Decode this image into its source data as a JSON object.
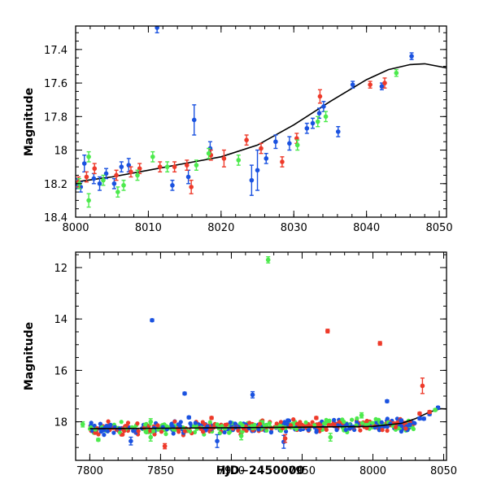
{
  "colors": {
    "blue": "#1a52e0",
    "red": "#ee3a2a",
    "green": "#4cea4c",
    "curve": "#000000"
  },
  "chart_data": [
    {
      "type": "scatter",
      "title": "",
      "xlabel": "",
      "ylabel": "Magnitude",
      "xlim": [
        8000,
        8051
      ],
      "ylim": [
        18.4,
        17.26
      ],
      "y_inverted": true,
      "xticks": [
        8000,
        8010,
        8020,
        8030,
        8040,
        8050
      ],
      "yticks": [
        17.4,
        17.6,
        17.8,
        18,
        18.2,
        18.4
      ],
      "ytick_labels": [
        "17.4",
        "17.6",
        "17.8",
        "18",
        "18.2",
        "18.4"
      ],
      "grid": false,
      "series": [
        {
          "color": "blue",
          "points": [
            {
              "x": 8000.2,
              "y": 18.2,
              "e": 0.03
            },
            {
              "x": 8000.7,
              "y": 18.22,
              "e": 0.03
            },
            {
              "x": 8001.2,
              "y": 18.08,
              "e": 0.05
            },
            {
              "x": 8002.5,
              "y": 18.17,
              "e": 0.03
            },
            {
              "x": 8003.3,
              "y": 18.2,
              "e": 0.04
            },
            {
              "x": 8004.2,
              "y": 18.14,
              "e": 0.03
            },
            {
              "x": 8005.3,
              "y": 18.2,
              "e": 0.03
            },
            {
              "x": 8006.3,
              "y": 18.1,
              "e": 0.03
            },
            {
              "x": 8007.3,
              "y": 18.09,
              "e": 0.04
            },
            {
              "x": 8011.2,
              "y": 17.27,
              "e": 0.03
            },
            {
              "x": 8013.3,
              "y": 18.21,
              "e": 0.03
            },
            {
              "x": 8015.5,
              "y": 18.16,
              "e": 0.04
            },
            {
              "x": 8016.3,
              "y": 17.82,
              "e": 0.09
            },
            {
              "x": 8018.5,
              "y": 17.99,
              "e": 0.04
            },
            {
              "x": 8024.2,
              "y": 18.18,
              "e": 0.09
            },
            {
              "x": 8025.0,
              "y": 18.12,
              "e": 0.12
            },
            {
              "x": 8026.2,
              "y": 18.05,
              "e": 0.03
            },
            {
              "x": 8027.5,
              "y": 17.95,
              "e": 0.04
            },
            {
              "x": 8029.4,
              "y": 17.96,
              "e": 0.04
            },
            {
              "x": 8031.8,
              "y": 17.87,
              "e": 0.03
            },
            {
              "x": 8032.6,
              "y": 17.84,
              "e": 0.03
            },
            {
              "x": 8033.5,
              "y": 17.78,
              "e": 0.03
            },
            {
              "x": 8034.1,
              "y": 17.74,
              "e": 0.03
            },
            {
              "x": 8036.1,
              "y": 17.89,
              "e": 0.03
            },
            {
              "x": 8038.1,
              "y": 17.61,
              "e": 0.02
            },
            {
              "x": 8042.1,
              "y": 17.62,
              "e": 0.02
            },
            {
              "x": 8046.2,
              "y": 17.44,
              "e": 0.02
            }
          ]
        },
        {
          "color": "red",
          "points": [
            {
              "x": 8000.4,
              "y": 18.19,
              "e": 0.03
            },
            {
              "x": 8001.5,
              "y": 18.16,
              "e": 0.03
            },
            {
              "x": 8002.6,
              "y": 18.11,
              "e": 0.03
            },
            {
              "x": 8005.6,
              "y": 18.15,
              "e": 0.03
            },
            {
              "x": 8007.6,
              "y": 18.13,
              "e": 0.03
            },
            {
              "x": 8008.8,
              "y": 18.11,
              "e": 0.03
            },
            {
              "x": 8011.6,
              "y": 18.1,
              "e": 0.03
            },
            {
              "x": 8013.6,
              "y": 18.1,
              "e": 0.03
            },
            {
              "x": 8015.3,
              "y": 18.09,
              "e": 0.03
            },
            {
              "x": 8015.9,
              "y": 18.22,
              "e": 0.04
            },
            {
              "x": 8018.6,
              "y": 18.03,
              "e": 0.03
            },
            {
              "x": 8020.4,
              "y": 18.05,
              "e": 0.05
            },
            {
              "x": 8023.5,
              "y": 17.94,
              "e": 0.03
            },
            {
              "x": 8025.5,
              "y": 17.99,
              "e": 0.03
            },
            {
              "x": 8028.4,
              "y": 18.07,
              "e": 0.03
            },
            {
              "x": 8030.4,
              "y": 17.93,
              "e": 0.03
            },
            {
              "x": 8033.6,
              "y": 17.68,
              "e": 0.04
            },
            {
              "x": 8040.5,
              "y": 17.61,
              "e": 0.02
            },
            {
              "x": 8042.5,
              "y": 17.6,
              "e": 0.03
            }
          ]
        },
        {
          "color": "green",
          "points": [
            {
              "x": 8000.5,
              "y": 18.2,
              "e": 0.03
            },
            {
              "x": 8001.8,
              "y": 18.04,
              "e": 0.03
            },
            {
              "x": 8001.8,
              "y": 18.3,
              "e": 0.04
            },
            {
              "x": 8003.8,
              "y": 18.18,
              "e": 0.03
            },
            {
              "x": 8005.8,
              "y": 18.25,
              "e": 0.03
            },
            {
              "x": 8006.6,
              "y": 18.21,
              "e": 0.03
            },
            {
              "x": 8008.5,
              "y": 18.15,
              "e": 0.03
            },
            {
              "x": 8010.6,
              "y": 18.04,
              "e": 0.03
            },
            {
              "x": 8012.6,
              "y": 18.1,
              "e": 0.03
            },
            {
              "x": 8016.6,
              "y": 18.09,
              "e": 0.03
            },
            {
              "x": 8018.3,
              "y": 18.02,
              "e": 0.03
            },
            {
              "x": 8022.4,
              "y": 18.06,
              "e": 0.03
            },
            {
              "x": 8030.5,
              "y": 17.97,
              "e": 0.03
            },
            {
              "x": 8033.3,
              "y": 17.83,
              "e": 0.03
            },
            {
              "x": 8034.4,
              "y": 17.8,
              "e": 0.03
            },
            {
              "x": 8044.1,
              "y": 17.54,
              "e": 0.02
            }
          ]
        }
      ],
      "model_curve": {
        "color": "curve",
        "points": [
          [
            8000,
            18.19
          ],
          [
            8005,
            18.16
          ],
          [
            8010,
            18.12
          ],
          [
            8015,
            18.08
          ],
          [
            8020,
            18.04
          ],
          [
            8025,
            17.97
          ],
          [
            8030,
            17.85
          ],
          [
            8035,
            17.71
          ],
          [
            8040,
            17.58
          ],
          [
            8043,
            17.52
          ],
          [
            8046,
            17.49
          ],
          [
            8048,
            17.485
          ],
          [
            8051,
            17.51
          ]
        ]
      }
    },
    {
      "type": "scatter",
      "title": "",
      "xlabel": "HJD−2450000",
      "ylabel": "Magnitude",
      "xlim": [
        7790,
        8052
      ],
      "ylim": [
        19.5,
        11.4
      ],
      "y_inverted": true,
      "xticks": [
        7800,
        7850,
        7900,
        7950,
        8000,
        8050
      ],
      "yticks": [
        12,
        14,
        16,
        18
      ],
      "ytick_labels": [
        "12",
        "14",
        "16",
        "18"
      ],
      "grid": false,
      "dense_band": {
        "x_start": 7800,
        "x_end": 8030,
        "mag_start": 18.27,
        "mag_end": 18.12,
        "scatter": 0.16
      },
      "series": [
        {
          "color": "blue",
          "points": [
            {
              "x": 7844,
              "y": 14.05,
              "e": 0.05
            },
            {
              "x": 7867,
              "y": 16.9,
              "e": 0.05
            },
            {
              "x": 7915,
              "y": 16.95,
              "e": 0.12
            },
            {
              "x": 7870,
              "y": 17.83,
              "e": 0.05
            },
            {
              "x": 7890,
              "y": 18.75,
              "e": 0.25
            },
            {
              "x": 7829,
              "y": 18.75,
              "e": 0.15
            },
            {
              "x": 7937,
              "y": 18.78,
              "e": 0.25
            },
            {
              "x": 7940,
              "y": 17.95,
              "e": 0.05
            },
            {
              "x": 8010,
              "y": 17.2,
              "e": 0.05
            },
            {
              "x": 8020,
              "y": 17.95,
              "e": 0.05
            },
            {
              "x": 8026,
              "y": 18.12,
              "e": 0.05
            },
            {
              "x": 8033,
              "y": 17.87,
              "e": 0.05
            },
            {
              "x": 8036,
              "y": 17.88,
              "e": 0.05
            },
            {
              "x": 8040,
              "y": 17.7,
              "e": 0.05
            },
            {
              "x": 8046,
              "y": 17.45,
              "e": 0.05
            }
          ]
        },
        {
          "color": "red",
          "points": [
            {
              "x": 7968,
              "y": 14.47,
              "e": 0.07
            },
            {
              "x": 8005,
              "y": 14.95,
              "e": 0.07
            },
            {
              "x": 8035,
              "y": 16.6,
              "e": 0.3
            },
            {
              "x": 7853,
              "y": 18.95,
              "e": 0.1
            },
            {
              "x": 7886,
              "y": 17.85,
              "e": 0.05
            },
            {
              "x": 7938,
              "y": 18.65,
              "e": 0.15
            },
            {
              "x": 7960,
              "y": 17.85,
              "e": 0.05
            },
            {
              "x": 8033,
              "y": 17.68,
              "e": 0.05
            },
            {
              "x": 8040,
              "y": 17.62,
              "e": 0.05
            }
          ]
        },
        {
          "color": "green",
          "points": [
            {
              "x": 7926,
              "y": 11.7,
              "e": 0.12
            },
            {
              "x": 7795,
              "y": 18.1,
              "e": 0.1
            },
            {
              "x": 7806,
              "y": 18.7,
              "e": 0.05
            },
            {
              "x": 7843,
              "y": 18.0,
              "e": 0.12
            },
            {
              "x": 7843,
              "y": 18.6,
              "e": 0.15
            },
            {
              "x": 7907,
              "y": 18.55,
              "e": 0.15
            },
            {
              "x": 7970,
              "y": 18.6,
              "e": 0.15
            },
            {
              "x": 7992,
              "y": 17.75,
              "e": 0.1
            },
            {
              "x": 8044,
              "y": 17.54,
              "e": 0.05
            }
          ]
        }
      ],
      "model_curve": {
        "color": "curve",
        "points": [
          [
            7800,
            18.27
          ],
          [
            7850,
            18.25
          ],
          [
            7900,
            18.23
          ],
          [
            7950,
            18.21
          ],
          [
            8000,
            18.18
          ],
          [
            8020,
            18.06
          ],
          [
            8030,
            17.88
          ],
          [
            8040,
            17.62
          ],
          [
            8048,
            17.49
          ],
          [
            8052,
            17.5
          ]
        ]
      }
    }
  ]
}
